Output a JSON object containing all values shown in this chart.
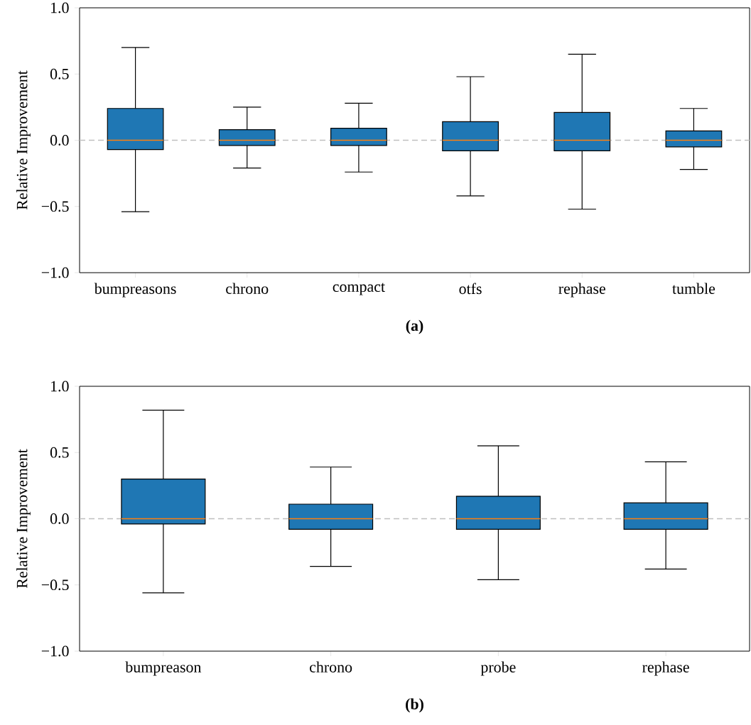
{
  "chart_data": [
    {
      "type": "box",
      "title": "(a)",
      "ylabel": "Relative Improvement",
      "categories": [
        "bumpreasons",
        "chrono",
        "compact",
        "otfs",
        "rephase",
        "tumble"
      ],
      "color": "#1f77b4",
      "boxes": [
        {
          "low": -0.54,
          "q1": -0.07,
          "median": 0,
          "q3": 0.24,
          "high": 0.7
        },
        {
          "low": -0.21,
          "q1": -0.04,
          "median": 0,
          "q3": 0.08,
          "high": 0.25
        },
        {
          "low": -0.24,
          "q1": -0.04,
          "median": 0,
          "q3": 0.09,
          "high": 0.28
        },
        {
          "low": -0.42,
          "q1": -0.08,
          "median": 0,
          "q3": 0.14,
          "high": 0.48
        },
        {
          "low": -0.52,
          "q1": -0.08,
          "median": 0,
          "q3": 0.21,
          "high": 0.65
        },
        {
          "low": -0.22,
          "q1": -0.05,
          "median": 0,
          "q3": 0.07,
          "high": 0.24
        }
      ],
      "ylim": [
        -1,
        1
      ],
      "yticks": [
        {
          "value": -1,
          "label": "−1.0"
        },
        {
          "value": -0.5,
          "label": "−0.5"
        },
        {
          "value": 0,
          "label": "0.0"
        },
        {
          "value": 0.5,
          "label": "0.5"
        },
        {
          "value": 1,
          "label": "1.0"
        }
      ],
      "ref_lines": [
        {
          "axis": "y",
          "value": 0,
          "color": "#bfbfbf",
          "line_style": "dashed"
        }
      ]
    },
    {
      "type": "box",
      "title": "(b)",
      "ylabel": "Relative Improvement",
      "categories": [
        "bumpreason",
        "chrono",
        "probe",
        "rephase"
      ],
      "color": "#1f77b4",
      "boxes": [
        {
          "low": -0.56,
          "q1": -0.04,
          "median": 0,
          "q3": 0.3,
          "high": 0.82
        },
        {
          "low": -0.36,
          "q1": -0.08,
          "median": 0,
          "q3": 0.11,
          "high": 0.39
        },
        {
          "low": -0.46,
          "q1": -0.08,
          "median": 0,
          "q3": 0.17,
          "high": 0.55
        },
        {
          "low": -0.38,
          "q1": -0.08,
          "median": 0,
          "q3": 0.12,
          "high": 0.43
        }
      ],
      "ylim": [
        -1,
        1
      ],
      "yticks": [
        {
          "value": -1,
          "label": "−1.0"
        },
        {
          "value": -0.5,
          "label": "−0.5"
        },
        {
          "value": 0,
          "label": "0.0"
        },
        {
          "value": 0.5,
          "label": "0.5"
        },
        {
          "value": 1,
          "label": "1.0"
        }
      ],
      "ref_lines": [
        {
          "axis": "y",
          "value": 0,
          "color": "#bfbfbf",
          "line_style": "dashed"
        }
      ]
    }
  ]
}
